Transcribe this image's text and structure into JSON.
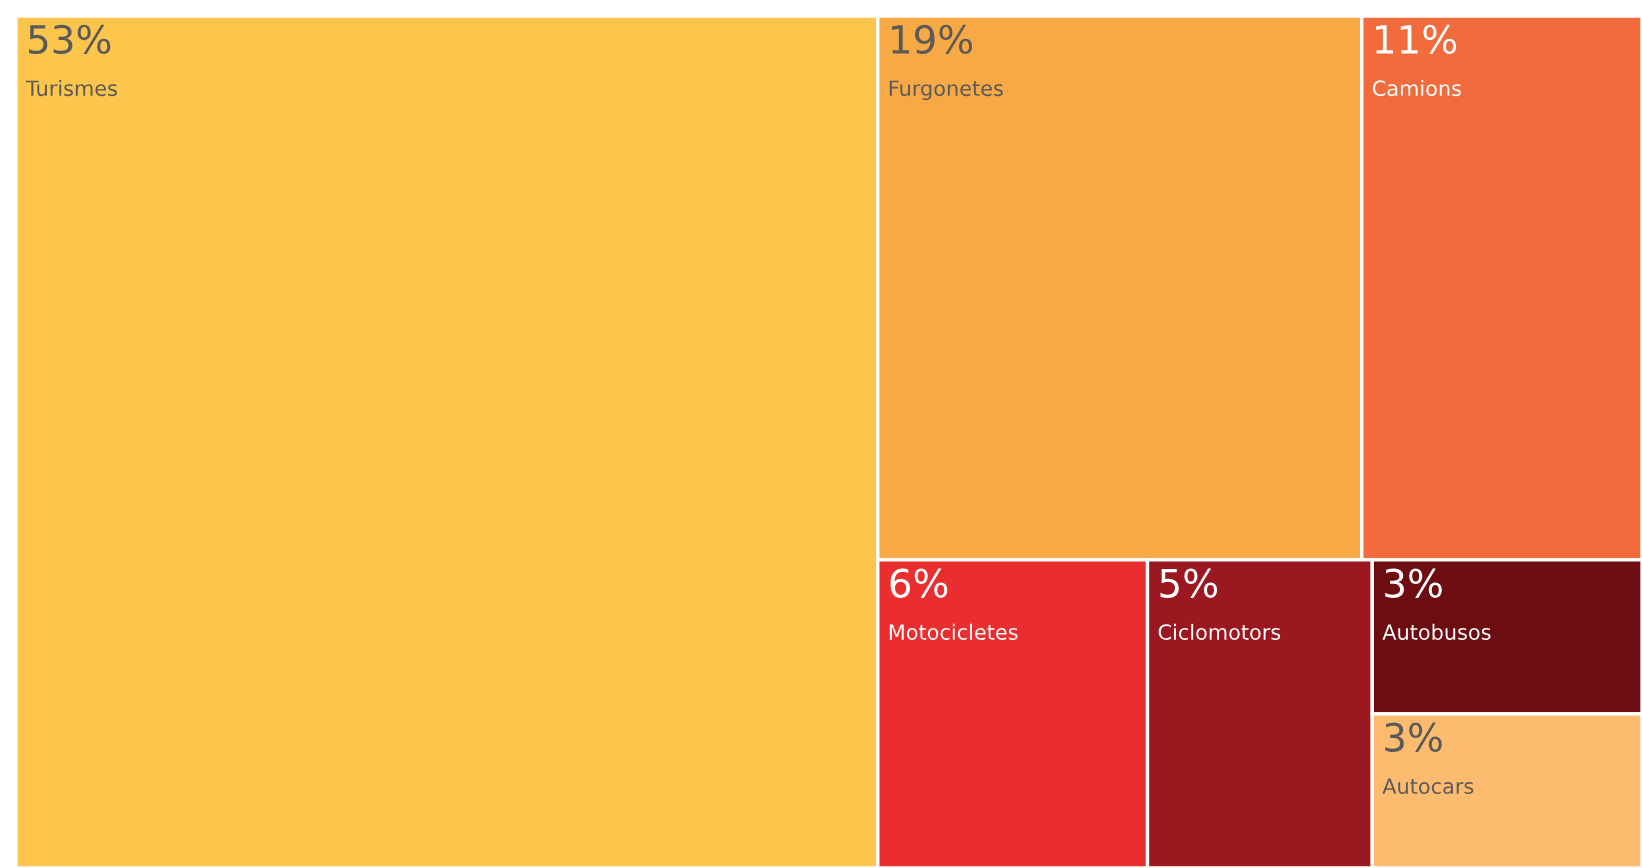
{
  "chart_data": {
    "type": "other",
    "categories": [
      "Turismes",
      "Furgonetes",
      "Camions",
      "Motocicletes",
      "Ciclomotors",
      "Autobusos",
      "Autocars"
    ],
    "values": [
      53,
      19,
      11,
      6,
      5,
      3,
      3
    ],
    "value_labels": [
      "53%",
      "19%",
      "11%",
      "6%",
      "5%",
      "3%",
      "3%"
    ],
    "colors": [
      "#fbc64b",
      "#f7a946",
      "#f26b3c",
      "#ea2e2f",
      "#9c1820",
      "#6d0d12",
      "#fcbb6e"
    ]
  }
}
